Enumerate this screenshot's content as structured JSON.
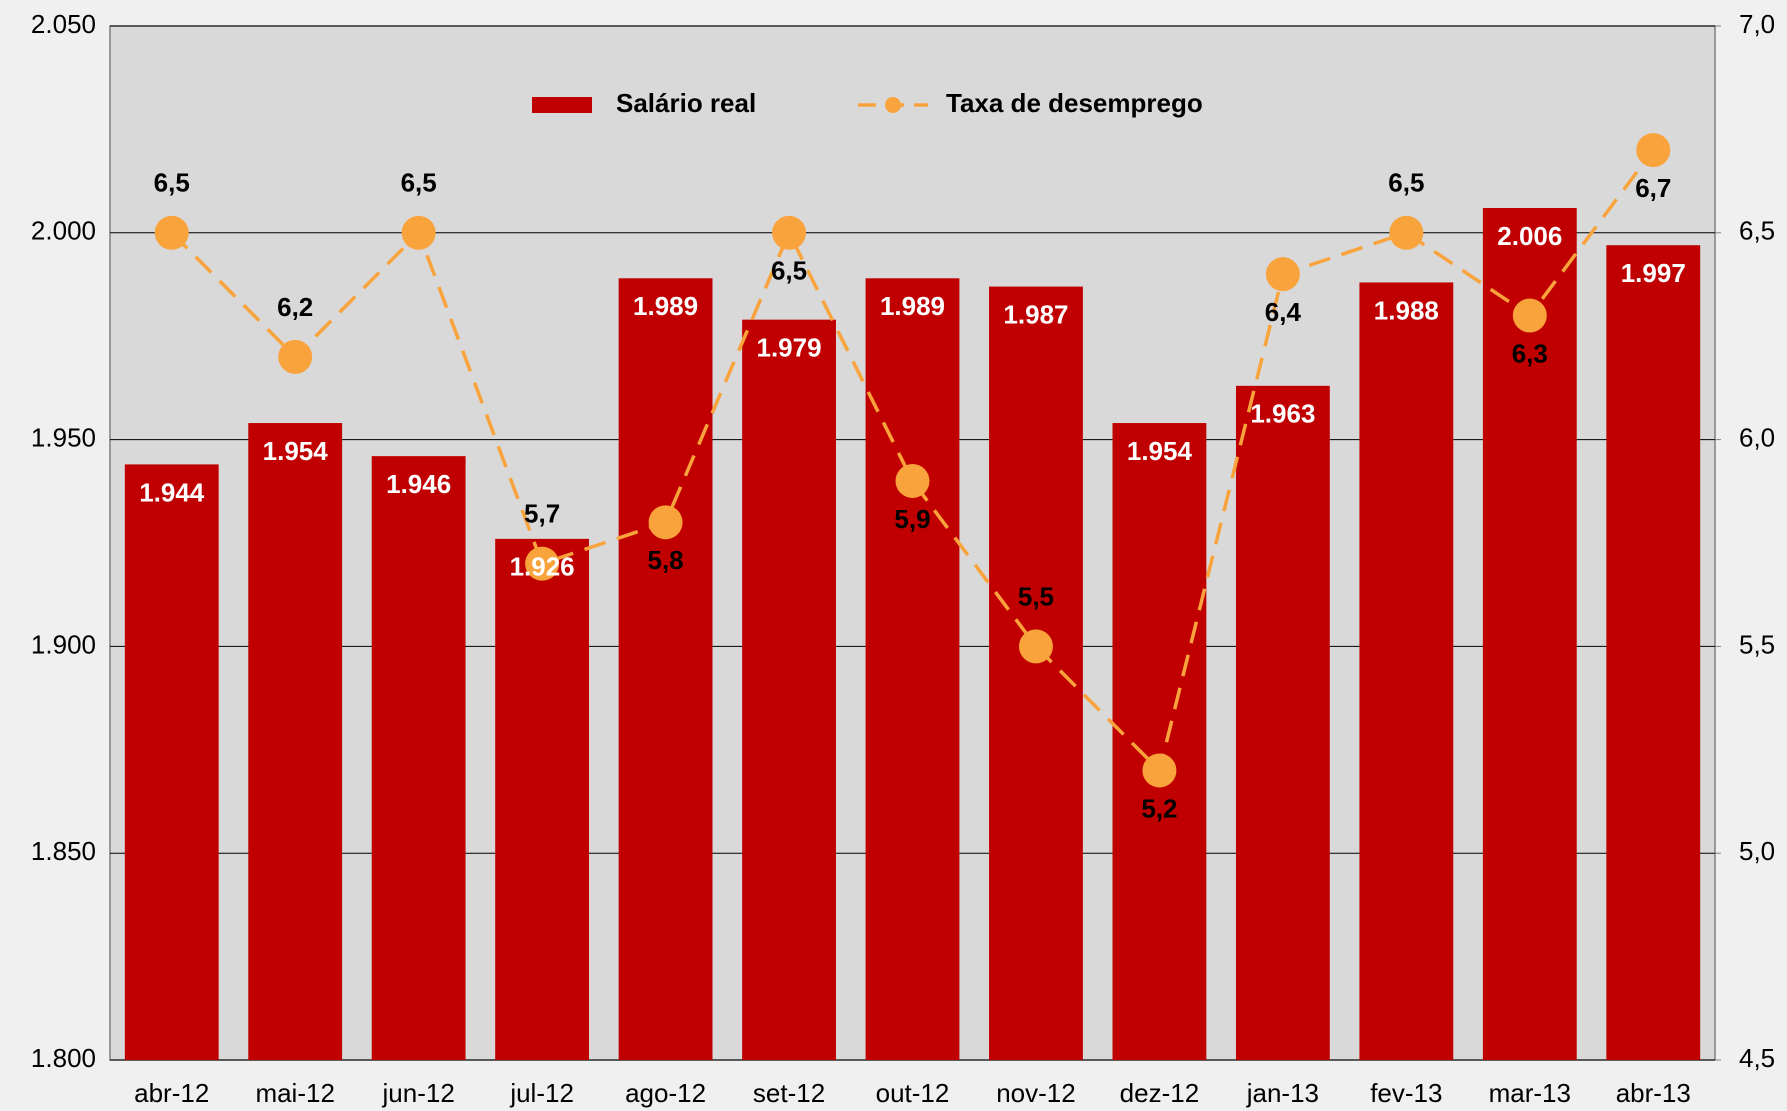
{
  "chart_data": {
    "type": "bar_line",
    "categories": [
      "abr-12",
      "mai-12",
      "jun-12",
      "jul-12",
      "ago-12",
      "set-12",
      "out-12",
      "nov-12",
      "dez-12",
      "jan-13",
      "fev-13",
      "mar-13",
      "abr-13"
    ],
    "series": [
      {
        "name": "Salário real",
        "type": "bar",
        "color": "#c00000",
        "values": [
          1944,
          1954,
          1946,
          1926,
          1989,
          1979,
          1989,
          1987,
          1954,
          1963,
          1988,
          2006,
          1997
        ],
        "value_labels": [
          "1.944",
          "1.954",
          "1.946",
          "1.926",
          "1.989",
          "1.979",
          "1.989",
          "1.987",
          "1.954",
          "1.963",
          "1.988",
          "2.006",
          "1.997"
        ]
      },
      {
        "name": "Taxa de desemprego",
        "type": "line",
        "color": "#f9a33c",
        "axis": "y2",
        "values": [
          6.5,
          6.2,
          6.5,
          5.7,
          5.8,
          6.5,
          5.9,
          5.5,
          5.2,
          6.4,
          6.5,
          6.3,
          6.7
        ],
        "value_labels": [
          "6,5",
          "6,2",
          "6,5",
          "5,7",
          "5,8",
          "6,5",
          "5,9",
          "5,5",
          "5,2",
          "6,4",
          "6,5",
          "6,3",
          "6,7"
        ]
      }
    ],
    "ylim": [
      1800,
      2050
    ],
    "yticks": [
      {
        "value": 1800,
        "label": "1.800"
      },
      {
        "value": 1850,
        "label": "1.850"
      },
      {
        "value": 1900,
        "label": "1.900"
      },
      {
        "value": 1950,
        "label": "1.950"
      },
      {
        "value": 2000,
        "label": "2.000"
      },
      {
        "value": 2050,
        "label": "2.050"
      }
    ],
    "y2lim": [
      4.5,
      7.0
    ],
    "y2ticks": [
      {
        "value": 4.5,
        "label": "4,5"
      },
      {
        "value": 5.0,
        "label": "5,0"
      },
      {
        "value": 5.5,
        "label": "5,5"
      },
      {
        "value": 6.0,
        "label": "6,0"
      },
      {
        "value": 6.5,
        "label": "6,5"
      },
      {
        "value": 7.0,
        "label": "7,0"
      }
    ],
    "grid": true,
    "legend": "top"
  }
}
